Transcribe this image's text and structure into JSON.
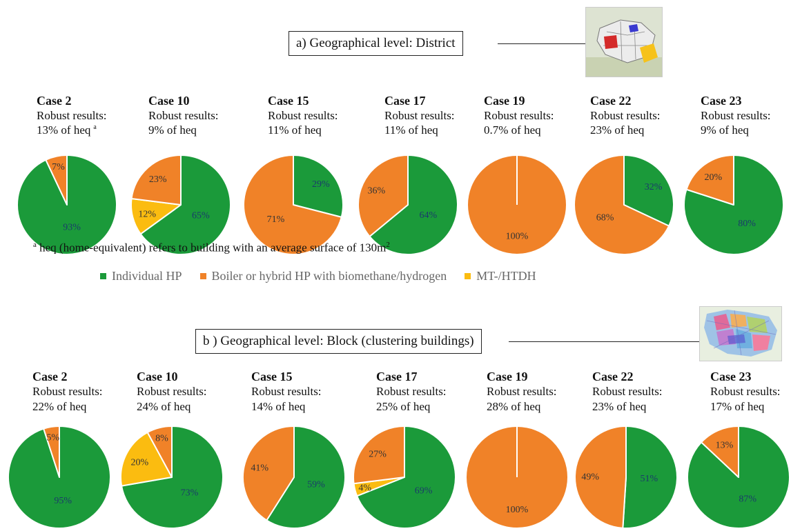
{
  "sections": [
    {
      "label": "a) Geographical level: District"
    },
    {
      "label": "b ) Geographical level: Block (clustering buildings)"
    }
  ],
  "footnote": {
    "marker": "a",
    "text": " heq (home-equivalent) refers to building with an average surface of 130m",
    "exp": "2"
  },
  "legend": [
    {
      "label": "Individual HP",
      "color": "#1b9a3a"
    },
    {
      "label": "Boiler or hybrid HP with biomethane/hydrogen",
      "color": "#f08228"
    },
    {
      "label": "MT-/HTDH",
      "color": "#fbbc10"
    }
  ],
  "colors": {
    "individual_hp": "#1b9a3a",
    "boiler": "#f08228",
    "dh": "#fbbc10",
    "label_text": "#333333",
    "label_on_green": "#1b3a6b"
  },
  "chart_data": [
    {
      "type": "pie",
      "title": "a) Geographical level: District",
      "series_names": [
        "Individual HP",
        "Boiler or hybrid HP with biomethane/hydrogen",
        "MT-/HTDH"
      ],
      "cases": [
        {
          "title": "Case 2",
          "line1": "Robust results:",
          "line2": "13% of heq",
          "note": "a",
          "values": [
            93,
            7,
            0
          ]
        },
        {
          "title": "Case 10",
          "line1": "Robust results:",
          "line2": "9% of heq",
          "note": "",
          "values": [
            65,
            23,
            12
          ]
        },
        {
          "title": "Case 15",
          "line1": "Robust results:",
          "line2": "11% of heq",
          "note": "",
          "values": [
            29,
            71,
            0
          ]
        },
        {
          "title": "Case 17",
          "line1": "Robust results:",
          "line2": "11% of heq",
          "note": "",
          "values": [
            64,
            36,
            0
          ]
        },
        {
          "title": "Case 19",
          "line1": "Robust results:",
          "line2": "0.7% of heq",
          "note": "",
          "values": [
            0,
            100,
            0
          ]
        },
        {
          "title": "Case 22",
          "line1": "Robust results:",
          "line2": "23% of heq",
          "note": "",
          "values": [
            32,
            68,
            0
          ]
        },
        {
          "title": "Case 23",
          "line1": "Robust results:",
          "line2": "9% of heq",
          "note": "",
          "values": [
            80,
            20,
            0
          ]
        }
      ]
    },
    {
      "type": "pie",
      "title": "b ) Geographical level: Block (clustering buildings)",
      "series_names": [
        "Individual HP",
        "Boiler or hybrid HP with biomethane/hydrogen",
        "MT-/HTDH"
      ],
      "cases": [
        {
          "title": "Case 2",
          "line1": "Robust results:",
          "line2": "22% of heq",
          "note": "",
          "values": [
            95,
            5,
            0
          ]
        },
        {
          "title": "Case 10",
          "line1": "Robust results:",
          "line2": "24% of heq",
          "note": "",
          "values": [
            73,
            8,
            20
          ]
        },
        {
          "title": "Case 15",
          "line1": "Robust results:",
          "line2": "14% of heq",
          "note": "",
          "values": [
            59,
            41,
            0
          ]
        },
        {
          "title": "Case 17",
          "line1": "Robust results:",
          "line2": "25% of heq",
          "note": "",
          "values": [
            69,
            27,
            4
          ]
        },
        {
          "title": "Case 19",
          "line1": "Robust results:",
          "line2": "28% of heq",
          "note": "",
          "values": [
            0,
            100,
            0
          ]
        },
        {
          "title": "Case 22",
          "line1": "Robust results:",
          "line2": "23% of heq",
          "note": "",
          "values": [
            51,
            49,
            0
          ]
        },
        {
          "title": "Case 23",
          "line1": "Robust results:",
          "line2": "17% of heq",
          "note": "",
          "values": [
            87,
            13,
            0
          ]
        }
      ]
    }
  ]
}
